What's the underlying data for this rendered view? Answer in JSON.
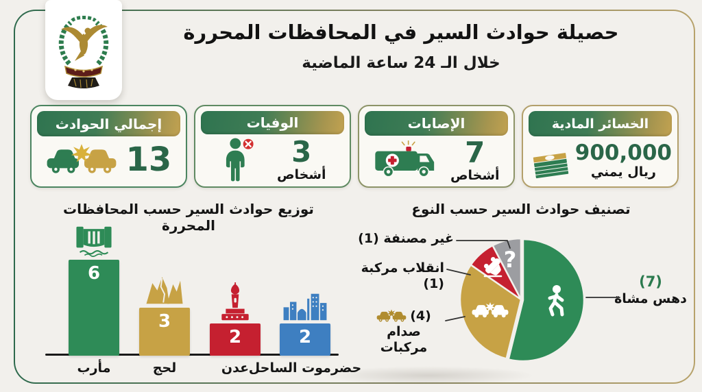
{
  "page": {
    "title": "حصيلة حوادث السير في المحافظات المحررة",
    "subtitle": "خلال الـ 24 ساعة الماضية",
    "logo_icon": "interior-ministry-eagle-emblem"
  },
  "colors": {
    "green": "#2E8B57",
    "gold": "#C7A245",
    "red": "#C52030",
    "blue": "#3E7FC1",
    "gray": "#9C9DA1",
    "number_green": "#2A6648"
  },
  "stats": [
    {
      "label": "إجمالي الحوادث",
      "value": "13",
      "unit": "",
      "icon": "car-collision-icon"
    },
    {
      "label": "الوفيات",
      "value": "3",
      "unit": "أشخاص",
      "icon": "deceased-person-icon"
    },
    {
      "label": "الإصابات",
      "value": "7",
      "unit": "أشخاص",
      "icon": "ambulance-icon"
    },
    {
      "label": "الخسائر المادية",
      "value": "900,000",
      "unit": "ريال يمني",
      "icon": "money-stack-icon"
    }
  ],
  "chart_data": [
    {
      "type": "bar",
      "title": "توزيع حوادث السير حسب المحافظات المحررة",
      "categories": [
        "مأرب",
        "لحج",
        "عدن",
        "حضرموت الساحل"
      ],
      "values": [
        6,
        3,
        2,
        2
      ],
      "colors": [
        "#2E8B57",
        "#C7A245",
        "#C52030",
        "#3E7FC1"
      ],
      "icons": [
        "marib-dam-icon",
        "lahj-rocks-icon",
        "aden-minaret-icon",
        "mukalla-skyline-icon"
      ],
      "ylim": [
        0,
        6
      ],
      "grid": false,
      "value_labels": "inside-top"
    },
    {
      "type": "pie",
      "title": "تصنيف حوادث السير حسب النوع",
      "total": 13,
      "start_angle_deg": 0,
      "direction": "clockwise",
      "slices": [
        {
          "label": "دهس مشاة",
          "value": 7,
          "value_display": "(7)",
          "color": "#2E8B57",
          "icon": "pedestrian-icon"
        },
        {
          "label": "صدام مركبات",
          "value": 4,
          "value_display": "(4)",
          "color": "#C7A245",
          "icon": "car-collision-icon"
        },
        {
          "label": "انقلاب مركبة",
          "value": 1,
          "value_display": "(1)",
          "color": "#C52030",
          "icon": "overturned-car-icon"
        },
        {
          "label": "غير مصنفة",
          "value": 1,
          "value_display": "(1)",
          "color": "#9C9DA1",
          "icon": "question-mark-icon"
        }
      ]
    }
  ]
}
